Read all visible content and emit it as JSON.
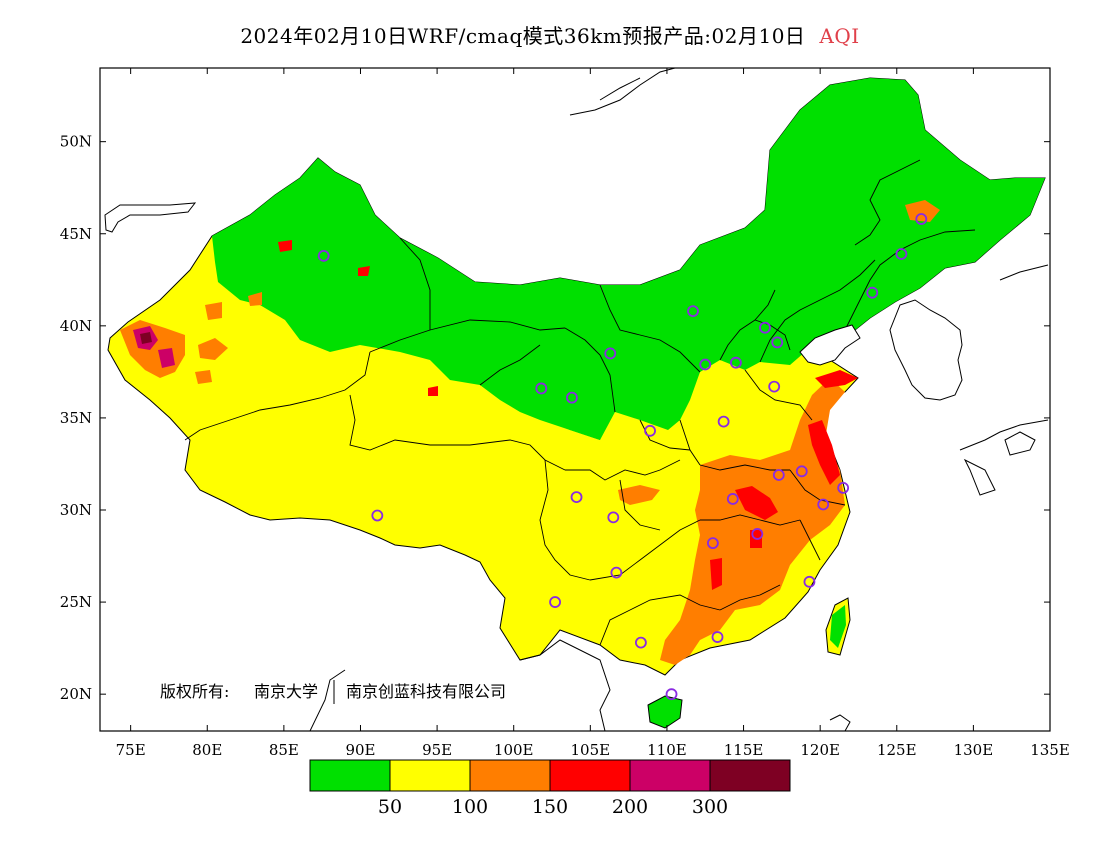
{
  "title": {
    "main": "2024年02月10日WRF/cmaq模式36km预报产品:02月10日",
    "product": "AQI",
    "product_color": "#e0404a"
  },
  "map": {
    "lon_range": [
      73,
      135
    ],
    "lat_range": [
      18,
      54
    ],
    "x_ticks": [
      "75E",
      "80E",
      "85E",
      "90E",
      "95E",
      "100E",
      "105E",
      "110E",
      "115E",
      "120E",
      "125E",
      "130E",
      "135E"
    ],
    "y_ticks": [
      "50N",
      "45N",
      "40N",
      "35N",
      "30N",
      "25N",
      "20N"
    ],
    "copyright_label": "版权所有:",
    "copyright_owner1": "南京大学",
    "copyright_owner2": "南京创蓝科技有限公司"
  },
  "legend": {
    "colors": [
      "#00e000",
      "#ffff00",
      "#ff7e00",
      "#ff0000",
      "#cc0066",
      "#7e0023"
    ],
    "categories": [
      "≤50",
      "50–100",
      "100–150",
      "150–200",
      "200–300",
      ">300"
    ],
    "breaks": [
      "50",
      "100",
      "150",
      "200",
      "300"
    ]
  },
  "stations": [
    {
      "lon": 87.6,
      "lat": 43.8
    },
    {
      "lon": 91.1,
      "lat": 29.7
    },
    {
      "lon": 101.8,
      "lat": 36.6
    },
    {
      "lon": 103.8,
      "lat": 36.1
    },
    {
      "lon": 106.3,
      "lat": 38.5
    },
    {
      "lon": 111.7,
      "lat": 40.8
    },
    {
      "lon": 116.4,
      "lat": 39.9
    },
    {
      "lon": 117.2,
      "lat": 39.1
    },
    {
      "lon": 114.5,
      "lat": 38.0
    },
    {
      "lon": 112.5,
      "lat": 37.9
    },
    {
      "lon": 117.0,
      "lat": 36.7
    },
    {
      "lon": 113.7,
      "lat": 34.8
    },
    {
      "lon": 108.9,
      "lat": 34.3
    },
    {
      "lon": 104.1,
      "lat": 30.7
    },
    {
      "lon": 106.5,
      "lat": 29.6
    },
    {
      "lon": 114.3,
      "lat": 30.6
    },
    {
      "lon": 117.3,
      "lat": 31.9
    },
    {
      "lon": 118.8,
      "lat": 32.1
    },
    {
      "lon": 120.2,
      "lat": 30.3
    },
    {
      "lon": 121.5,
      "lat": 31.2
    },
    {
      "lon": 115.9,
      "lat": 28.7
    },
    {
      "lon": 113.0,
      "lat": 28.2
    },
    {
      "lon": 119.3,
      "lat": 26.1
    },
    {
      "lon": 106.7,
      "lat": 26.6
    },
    {
      "lon": 102.7,
      "lat": 25.0
    },
    {
      "lon": 113.3,
      "lat": 23.1
    },
    {
      "lon": 108.3,
      "lat": 22.8
    },
    {
      "lon": 110.3,
      "lat": 20.0
    },
    {
      "lon": 123.4,
      "lat": 41.8
    },
    {
      "lon": 125.3,
      "lat": 43.9
    },
    {
      "lon": 126.6,
      "lat": 45.8
    }
  ]
}
